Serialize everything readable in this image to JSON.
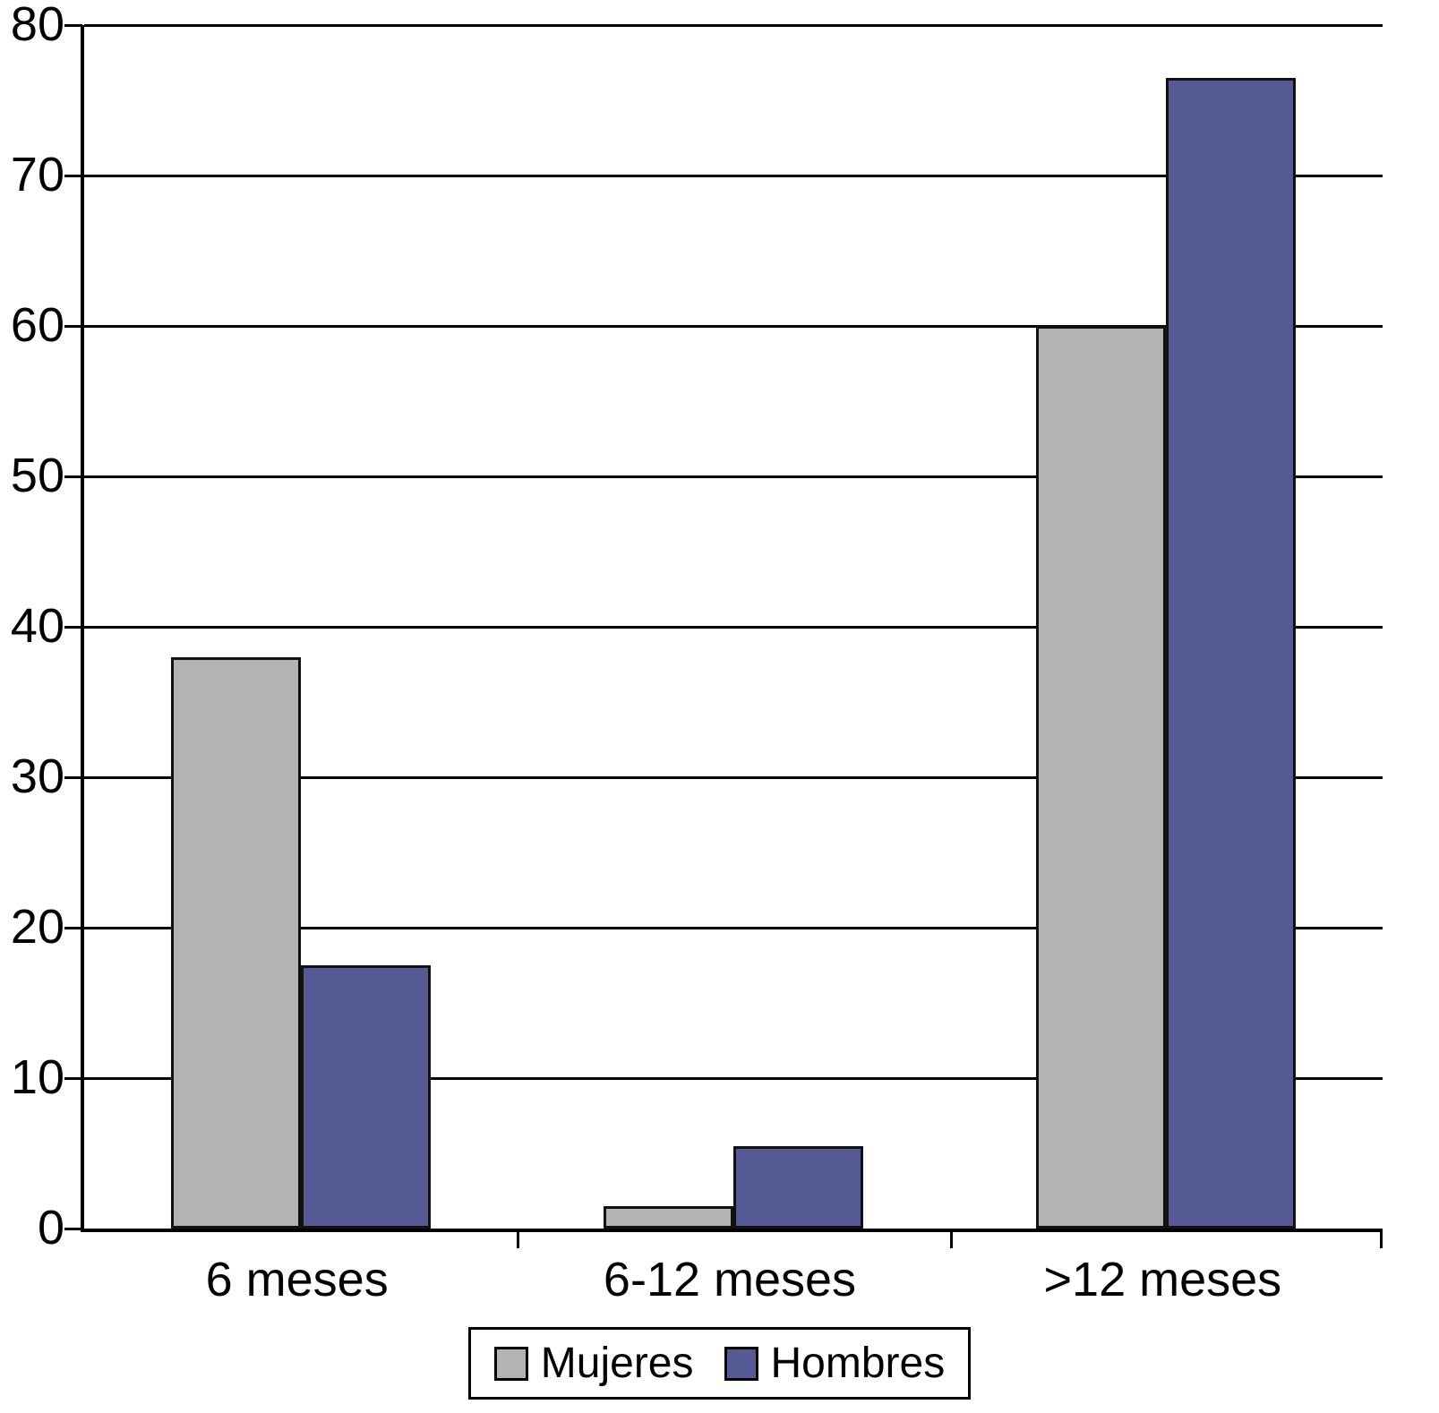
{
  "chart_data": {
    "type": "bar",
    "title": "",
    "xlabel": "",
    "ylabel": "",
    "categories": [
      "6 meses",
      "6-12 meses",
      ">12 meses"
    ],
    "series": [
      {
        "name": "Mujeres",
        "color": "#b3b3b3",
        "values": [
          38,
          1.5,
          60
        ]
      },
      {
        "name": "Hombres",
        "color": "#565a94",
        "values": [
          17.5,
          5.5,
          76.5
        ]
      }
    ],
    "ylim": [
      0,
      80
    ],
    "yticks": [
      0,
      10,
      20,
      30,
      40,
      50,
      60,
      70,
      80
    ],
    "grid": true,
    "grid_color": "#000000",
    "bar_border_color": "#111111",
    "legend_position": "bottom"
  }
}
